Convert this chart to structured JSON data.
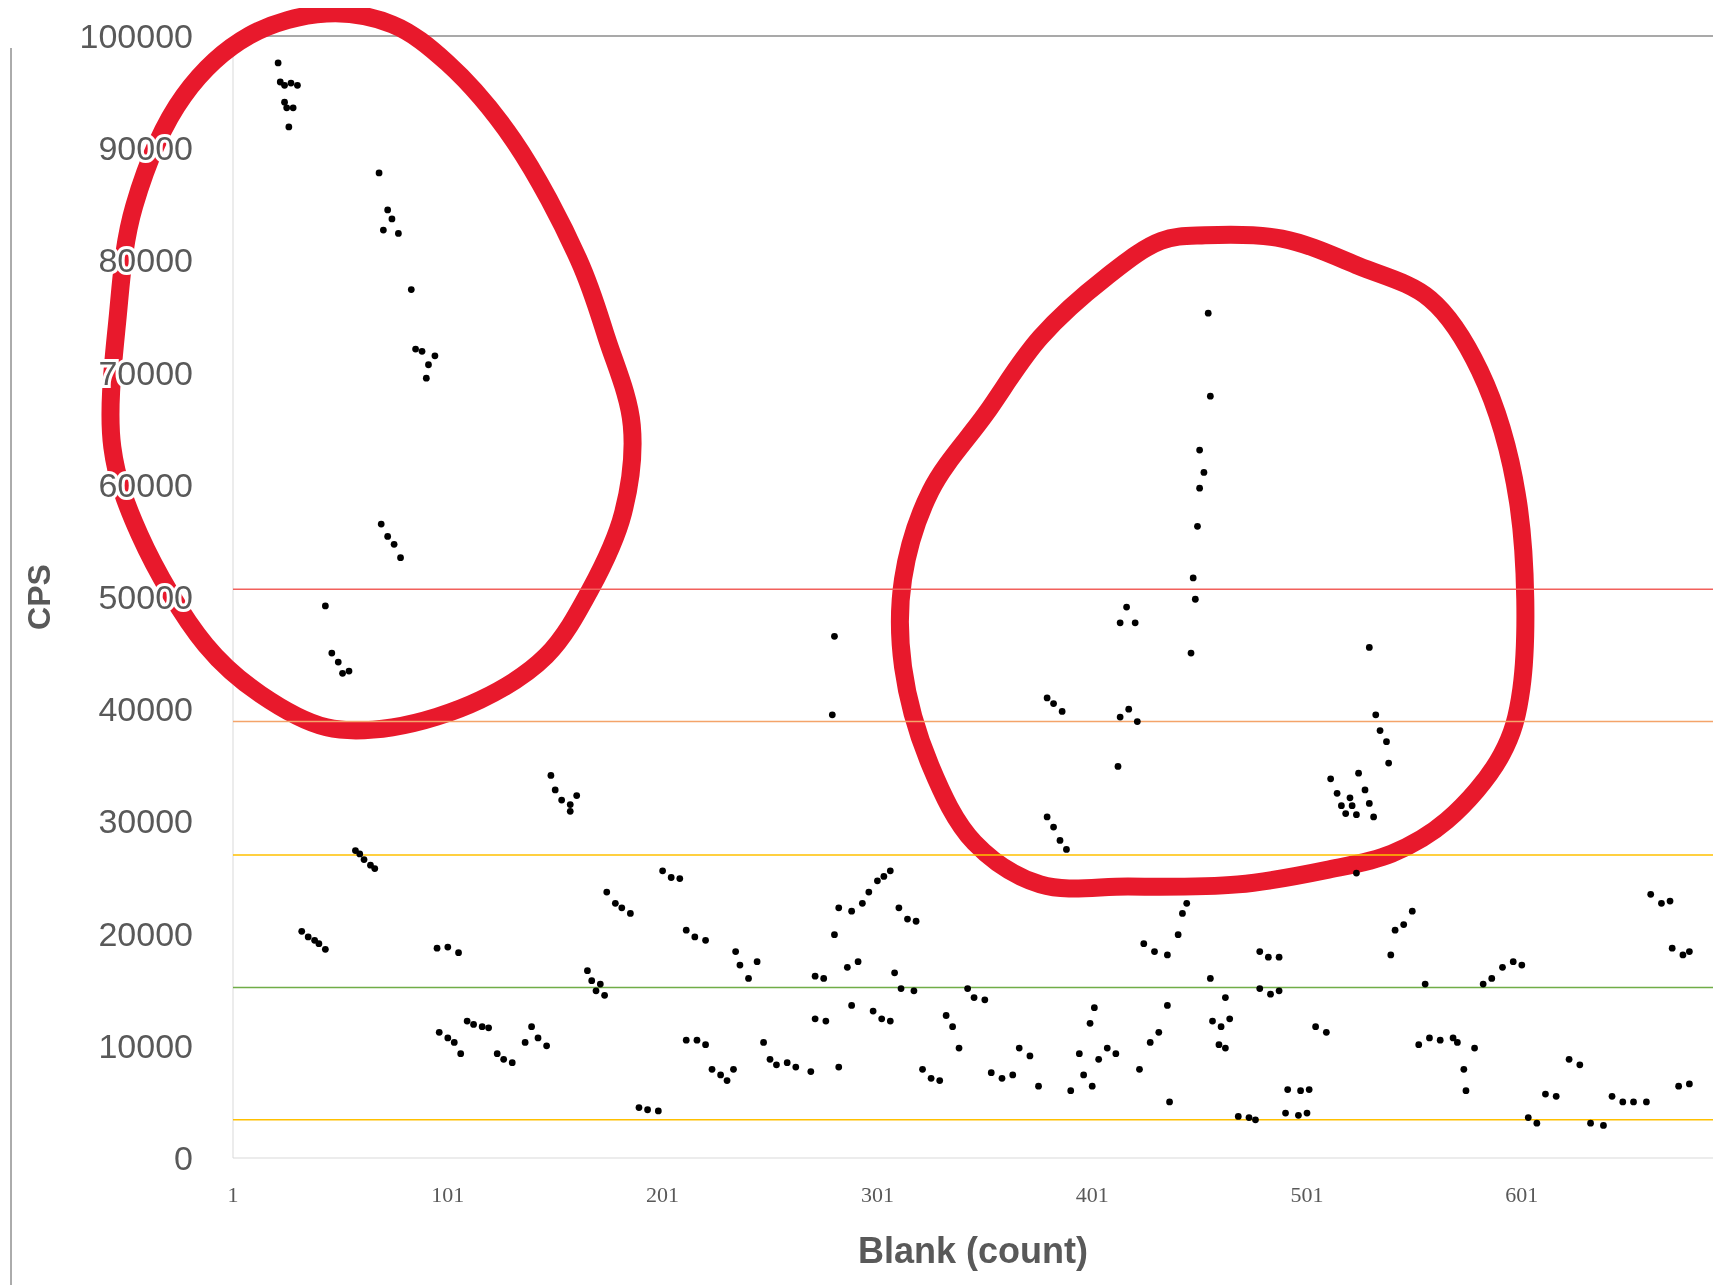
{
  "chart_data": {
    "type": "scatter",
    "xlabel": "Blank (count)",
    "ylabel": "CPS",
    "xlim": [
      1,
      690
    ],
    "xticks": [
      1,
      101,
      201,
      301,
      401,
      501,
      601
    ],
    "ylim": [
      0,
      100000
    ],
    "yticks": [
      0,
      10000,
      20000,
      30000,
      40000,
      50000,
      60000,
      70000,
      80000,
      90000,
      100000
    ],
    "marker": "circle",
    "grid": false,
    "ref_lines": [
      {
        "axis": "y",
        "value": 50700,
        "color": "#f2605c"
      },
      {
        "axis": "y",
        "value": 38900,
        "color": "#f4a46a"
      },
      {
        "axis": "y",
        "value": 27000,
        "color": "#ffc000"
      },
      {
        "axis": "y",
        "value": 15200,
        "color": "#70ad47"
      },
      {
        "axis": "y",
        "value": 3400,
        "color": "#ffc000"
      }
    ],
    "series": [
      {
        "color": "#000000",
        "x": [
          22,
          23,
          25,
          28,
          31,
          25,
          26,
          29,
          27,
          44,
          47,
          50,
          52,
          55,
          58,
          60,
          62,
          65,
          67,
          33,
          36,
          39,
          41,
          44,
          69,
          73,
          71,
          75,
          78,
          84,
          86,
          89,
          92,
          95,
          91,
          70,
          73,
          76,
          79,
          97,
          101,
          104,
          107,
          96,
          101,
          106,
          110,
          113,
          117,
          120,
          124,
          127,
          131,
          137,
          140,
          143,
          147,
          149,
          151,
          154,
          158,
          161,
          158,
          166,
          168,
          170,
          172,
          174,
          175,
          179,
          182,
          186,
          190,
          194,
          199,
          201,
          205,
          209,
          212,
          216,
          221,
          212,
          217,
          221,
          224,
          228,
          231,
          234,
          235,
          237,
          241,
          245,
          248,
          251,
          254,
          259,
          263,
          270,
          272,
          276,
          272,
          277,
          281,
          280,
          281,
          283,
          283,
          287,
          292,
          289,
          289,
          294,
          297,
          301,
          304,
          307,
          299,
          303,
          307,
          309,
          312,
          318,
          311,
          315,
          319,
          322,
          326,
          330,
          333,
          336,
          339,
          343,
          346,
          351,
          354,
          359,
          364,
          367,
          372,
          376,
          380,
          383,
          387,
          380,
          383,
          386,
          389,
          391,
          395,
          397,
          401,
          400,
          402,
          404,
          408,
          412,
          413,
          414,
          418,
          422,
          414,
          417,
          421,
          423,
          428,
          432,
          436,
          437,
          425,
          430,
          436,
          441,
          443,
          445,
          447,
          449,
          448,
          450,
          451,
          453,
          451,
          456,
          455,
          456,
          463,
          457,
          461,
          465,
          460,
          463,
          469,
          474,
          477,
          479,
          483,
          488,
          479,
          484,
          488,
          492,
          498,
          502,
          491,
          497,
          501,
          505,
          510,
          512,
          515,
          517,
          519,
          522,
          524,
          521,
          525,
          528,
          530,
          532,
          524,
          530,
          533,
          535,
          538,
          539,
          540,
          542,
          546,
          550,
          556,
          553,
          558,
          563,
          569,
          571,
          574,
          575,
          579,
          583,
          587,
          592,
          597,
          601,
          604,
          608,
          612,
          617,
          623,
          628,
          633,
          639,
          643,
          648,
          653,
          659,
          661,
          666,
          670,
          671,
          676,
          679,
          674,
          679
        ],
        "values": [
          97600,
          95900,
          95600,
          95800,
          95600,
          94100,
          93600,
          93600,
          91900,
          49200,
          45000,
          44200,
          43200,
          43400,
          27400,
          27100,
          26600,
          26100,
          25800,
          20200,
          19700,
          19400,
          19100,
          18600,
          87800,
          84500,
          82700,
          83700,
          82400,
          77400,
          72100,
          71900,
          70700,
          71500,
          69500,
          56500,
          55400,
          54700,
          53500,
          11200,
          10700,
          10300,
          9300,
          18700,
          18800,
          18300,
          12200,
          11900,
          11700,
          11600,
          9300,
          8800,
          8500,
          10300,
          11700,
          10700,
          10000,
          34100,
          32800,
          31900,
          30900,
          32300,
          31500,
          16700,
          15800,
          14900,
          15500,
          14500,
          23700,
          22700,
          22300,
          21800,
          4500,
          4300,
          4200,
          25600,
          25000,
          24900,
          20300,
          19700,
          19400,
          10500,
          10500,
          10100,
          7900,
          7400,
          6900,
          7900,
          18400,
          17200,
          16000,
          17500,
          10300,
          8800,
          8300,
          8500,
          8100,
          7700,
          16200,
          16000,
          12400,
          12200,
          46500,
          39500,
          19900,
          22300,
          8100,
          17000,
          17500,
          13600,
          22000,
          22700,
          23700,
          24700,
          25100,
          25600,
          13100,
          12400,
          12200,
          16500,
          15100,
          14900,
          22300,
          21300,
          21100,
          7900,
          7100,
          6900,
          12700,
          11700,
          9800,
          15100,
          14300,
          14100,
          7600,
          7100,
          7400,
          9800,
          9100,
          6400,
          41000,
          40500,
          39800,
          30400,
          29500,
          28300,
          27500,
          6000,
          9300,
          7400,
          6400,
          12000,
          13400,
          8800,
          9800,
          9300,
          34900,
          39300,
          40000,
          38900,
          47700,
          49100,
          47700,
          7900,
          10300,
          11200,
          13600,
          5000,
          19100,
          18400,
          18100,
          19900,
          21800,
          22700,
          45000,
          49800,
          51700,
          56300,
          59700,
          61100,
          63100,
          67900,
          75300,
          16000,
          14300,
          12200,
          11700,
          12400,
          10100,
          9800,
          3700,
          3600,
          3400,
          18400,
          17900,
          17900,
          15100,
          14600,
          14900,
          6100,
          6000,
          6100,
          4000,
          3800,
          4000,
          11700,
          11200,
          33800,
          32500,
          31400,
          30700,
          31400,
          30600,
          32100,
          34300,
          32800,
          31600,
          30400,
          25400,
          45500,
          39500,
          38100,
          37100,
          35200,
          18100,
          20300,
          20800,
          22000,
          15500,
          10100,
          10700,
          10500,
          10700,
          10300,
          7900,
          6000,
          9800,
          15500,
          16000,
          17000,
          17500,
          17200,
          3600,
          3100,
          5700,
          5500,
          8800,
          8300,
          3100,
          2900,
          5500,
          5000,
          5000,
          5000,
          23500,
          22700,
          22900,
          18700,
          18100,
          18400,
          6400,
          6600
        ]
      }
    ]
  }
}
